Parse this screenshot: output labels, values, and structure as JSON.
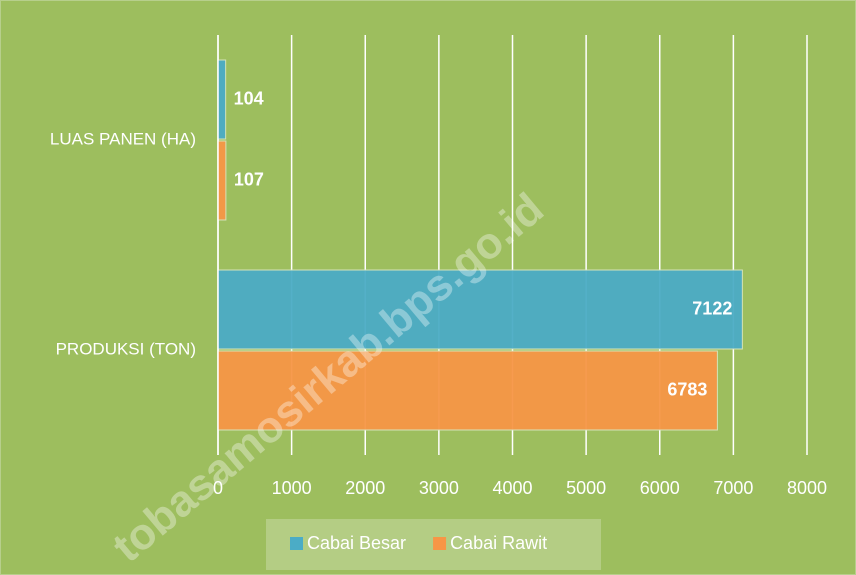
{
  "chart_data": {
    "type": "hbar",
    "categories": [
      "LUAS PANEN (HA)",
      "PRODUKSI (TON)"
    ],
    "series": [
      {
        "name": "Cabai Besar",
        "color": "#4bacc6",
        "values": [
          104,
          7122
        ]
      },
      {
        "name": "Cabai Rawit",
        "color": "#f79646",
        "values": [
          107,
          6783
        ]
      }
    ],
    "xlim": [
      0,
      8000
    ],
    "xticks": [
      0,
      1000,
      2000,
      3000,
      4000,
      5000,
      6000,
      7000,
      8000
    ],
    "grid": true,
    "legend": "bottom",
    "watermark": "tobasamosirkab.bps.go.id"
  }
}
